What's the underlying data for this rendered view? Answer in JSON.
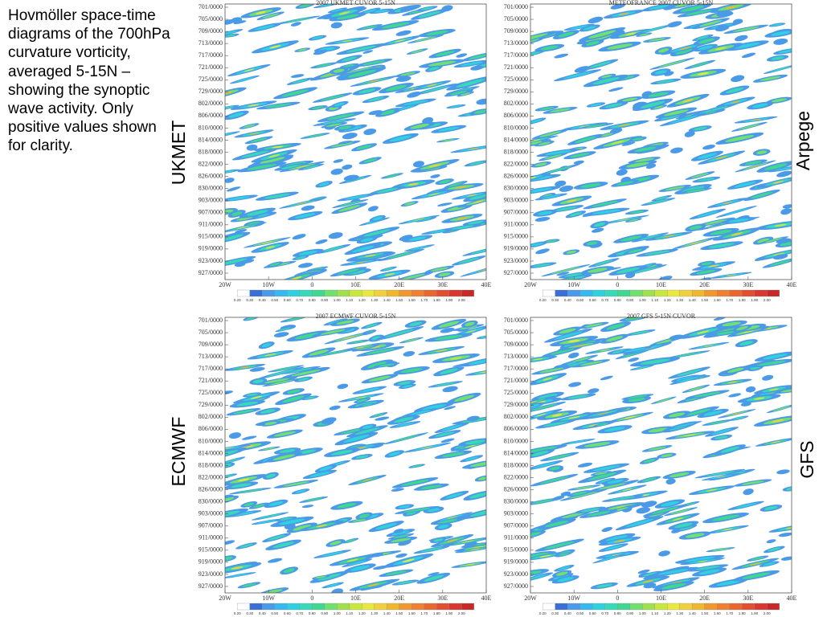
{
  "text": "Hovmöller space-time diagrams of the 700hPa curvature vorticity, averaged 5-15N – showing the synoptic wave activity. Only positive values shown for clarity.",
  "chart_data": [
    {
      "type": "contour",
      "title": "2007 UKMET CUVOR 5-15N",
      "label": "UKMET",
      "xlim": [
        -20,
        40
      ],
      "xticks": [
        {
          "value": -20,
          "label": "20W"
        },
        {
          "value": -10,
          "label": "10W"
        },
        0,
        {
          "value": 10,
          "label": "10E"
        },
        {
          "value": 20,
          "label": "20E"
        },
        {
          "value": 30,
          "label": "30E"
        },
        {
          "value": 40,
          "label": "40E"
        }
      ],
      "categories": [
        "701/0000",
        "705/0000",
        "709/0000",
        "713/0000",
        "717/0000",
        "721/0000",
        "725/0000",
        "729/0000",
        "802/0000",
        "806/0000",
        "810/0000",
        "814/0000",
        "818/0000",
        "822/0000",
        "826/0000",
        "830/0000",
        "903/0000",
        "907/0000",
        "911/0000",
        "915/0000",
        "919/0000",
        "923/0000",
        "927/0000"
      ],
      "levels": [
        {
          "value": 0.2,
          "label": "0.20"
        },
        {
          "value": 0.3,
          "label": "0.30"
        },
        {
          "value": 0.4,
          "label": "0.40"
        },
        {
          "value": 0.5,
          "label": "0.50"
        },
        {
          "value": 0.6,
          "label": "0.60"
        },
        {
          "value": 0.7,
          "label": "0.70"
        },
        {
          "value": 0.8,
          "label": "0.80"
        },
        {
          "value": 0.9,
          "label": "0.90"
        },
        {
          "value": 1,
          "label": "1.00"
        },
        {
          "value": 1.1,
          "label": "1.10"
        },
        {
          "value": 1.2,
          "label": "1.20"
        },
        {
          "value": 1.3,
          "label": "1.30"
        },
        {
          "value": 1.4,
          "label": "1.40"
        },
        {
          "value": 1.5,
          "label": "1.50"
        },
        {
          "value": 1.6,
          "label": "1.60"
        },
        {
          "value": 1.7,
          "label": "1.70"
        },
        {
          "value": 1.8,
          "label": "1.80"
        },
        {
          "value": 1.9,
          "label": "1.90"
        },
        {
          "value": 2,
          "label": "2.00"
        }
      ],
      "colors": [
        "#ffffff",
        "#3a6fd8",
        "#4a9ae8",
        "#38b8f0",
        "#30d0e0",
        "#38d8b8",
        "#40d890",
        "#70e070",
        "#a0e050",
        "#c8e840",
        "#e8e840",
        "#f0d040",
        "#f0b830",
        "#f09830",
        "#f08030",
        "#e86830",
        "#e05030",
        "#d83830",
        "#c82828"
      ]
    },
    {
      "type": "contour",
      "title": "METEOFRANCE 2007 CUVOR 5-15N",
      "label": "Arpege",
      "xlim": [
        -20,
        40
      ],
      "xticks": [
        {
          "value": -20,
          "label": "20W"
        },
        {
          "value": -10,
          "label": "10W"
        },
        0,
        {
          "value": 10,
          "label": "10E"
        },
        {
          "value": 20,
          "label": "20E"
        },
        {
          "value": 30,
          "label": "30E"
        },
        {
          "value": 40,
          "label": "40E"
        }
      ],
      "categories": [
        "701/0000",
        "705/0000",
        "709/0000",
        "713/0000",
        "717/0000",
        "721/0000",
        "725/0000",
        "729/0000",
        "802/0000",
        "806/0000",
        "810/0000",
        "814/0000",
        "818/0000",
        "822/0000",
        "826/0000",
        "830/0000",
        "903/0000",
        "907/0000",
        "911/0000",
        "915/0000",
        "919/0000",
        "923/0000",
        "927/0000"
      ],
      "levels": [
        {
          "value": 0.2,
          "label": "0.20"
        },
        {
          "value": 0.3,
          "label": "0.30"
        },
        {
          "value": 0.4,
          "label": "0.40"
        },
        {
          "value": 0.5,
          "label": "0.50"
        },
        {
          "value": 0.6,
          "label": "0.60"
        },
        {
          "value": 0.7,
          "label": "0.70"
        },
        {
          "value": 0.8,
          "label": "0.80"
        },
        {
          "value": 0.9,
          "label": "0.90"
        },
        {
          "value": 1,
          "label": "1.00"
        },
        {
          "value": 1.1,
          "label": "1.10"
        },
        {
          "value": 1.2,
          "label": "1.20"
        },
        {
          "value": 1.3,
          "label": "1.30"
        },
        {
          "value": 1.4,
          "label": "1.40"
        },
        {
          "value": 1.5,
          "label": "1.50"
        },
        {
          "value": 1.6,
          "label": "1.60"
        },
        {
          "value": 1.7,
          "label": "1.70"
        },
        {
          "value": 1.8,
          "label": "1.80"
        },
        {
          "value": 1.9,
          "label": "1.90"
        },
        {
          "value": 2,
          "label": "2.00"
        }
      ],
      "colors": [
        "#ffffff",
        "#3a6fd8",
        "#4a9ae8",
        "#38b8f0",
        "#30d0e0",
        "#38d8b8",
        "#40d890",
        "#70e070",
        "#a0e050",
        "#c8e840",
        "#e8e840",
        "#f0d040",
        "#f0b830",
        "#f09830",
        "#f08030",
        "#e86830",
        "#e05030",
        "#d83830",
        "#c82828"
      ]
    },
    {
      "type": "contour",
      "title": "2007 ECMWF CUVOR 5-15N",
      "label": "ECMWF",
      "xlim": [
        -20,
        40
      ],
      "xticks": [
        {
          "value": -20,
          "label": "20W"
        },
        {
          "value": -10,
          "label": "10W"
        },
        0,
        {
          "value": 10,
          "label": "10E"
        },
        {
          "value": 20,
          "label": "20E"
        },
        {
          "value": 30,
          "label": "30E"
        },
        {
          "value": 40,
          "label": "40E"
        }
      ],
      "categories": [
        "701/0000",
        "705/0000",
        "709/0000",
        "713/0000",
        "717/0000",
        "721/0000",
        "725/0000",
        "729/0000",
        "802/0000",
        "806/0000",
        "810/0000",
        "814/0000",
        "818/0000",
        "822/0000",
        "826/0000",
        "830/0000",
        "903/0000",
        "907/0000",
        "911/0000",
        "915/0000",
        "919/0000",
        "923/0000",
        "927/0000"
      ],
      "levels": [
        {
          "value": 0.2,
          "label": "0.20"
        },
        {
          "value": 0.3,
          "label": "0.30"
        },
        {
          "value": 0.4,
          "label": "0.40"
        },
        {
          "value": 0.5,
          "label": "0.50"
        },
        {
          "value": 0.6,
          "label": "0.60"
        },
        {
          "value": 0.7,
          "label": "0.70"
        },
        {
          "value": 0.8,
          "label": "0.80"
        },
        {
          "value": 0.9,
          "label": "0.90"
        },
        {
          "value": 1,
          "label": "1.00"
        },
        {
          "value": 1.1,
          "label": "1.10"
        },
        {
          "value": 1.2,
          "label": "1.20"
        },
        {
          "value": 1.3,
          "label": "1.30"
        },
        {
          "value": 1.4,
          "label": "1.40"
        },
        {
          "value": 1.5,
          "label": "1.50"
        },
        {
          "value": 1.6,
          "label": "1.60"
        },
        {
          "value": 1.7,
          "label": "1.70"
        },
        {
          "value": 1.8,
          "label": "1.80"
        },
        {
          "value": 1.9,
          "label": "1.90"
        },
        {
          "value": 2,
          "label": "2.00"
        }
      ],
      "colors": [
        "#ffffff",
        "#3a6fd8",
        "#4a9ae8",
        "#38b8f0",
        "#30d0e0",
        "#38d8b8",
        "#40d890",
        "#70e070",
        "#a0e050",
        "#c8e840",
        "#e8e840",
        "#f0d040",
        "#f0b830",
        "#f09830",
        "#f08030",
        "#e86830",
        "#e05030",
        "#d83830",
        "#c82828"
      ]
    },
    {
      "type": "contour",
      "title": "2007 GFS 5-15N CUVOR",
      "label": "GFS",
      "xlim": [
        -20,
        40
      ],
      "xticks": [
        {
          "value": -20,
          "label": "20W"
        },
        {
          "value": -10,
          "label": "10W"
        },
        0,
        {
          "value": 10,
          "label": "10E"
        },
        {
          "value": 20,
          "label": "20E"
        },
        {
          "value": 30,
          "label": "30E"
        },
        {
          "value": 40,
          "label": "40E"
        }
      ],
      "categories": [
        "701/0000",
        "705/0000",
        "709/0000",
        "713/0000",
        "717/0000",
        "721/0000",
        "725/0000",
        "729/0000",
        "802/0000",
        "806/0000",
        "810/0000",
        "814/0000",
        "818/0000",
        "822/0000",
        "826/0000",
        "830/0000",
        "903/0000",
        "907/0000",
        "911/0000",
        "915/0000",
        "919/0000",
        "923/0000",
        "927/0000"
      ],
      "levels": [
        {
          "value": 0.2,
          "label": "0.20"
        },
        {
          "value": 0.3,
          "label": "0.30"
        },
        {
          "value": 0.4,
          "label": "0.40"
        },
        {
          "value": 0.5,
          "label": "0.50"
        },
        {
          "value": 0.6,
          "label": "0.60"
        },
        {
          "value": 0.7,
          "label": "0.70"
        },
        {
          "value": 0.8,
          "label": "0.80"
        },
        {
          "value": 0.9,
          "label": "0.90"
        },
        {
          "value": 1,
          "label": "1.00"
        },
        {
          "value": 1.1,
          "label": "1.10"
        },
        {
          "value": 1.2,
          "label": "1.20"
        },
        {
          "value": 1.3,
          "label": "1.30"
        },
        {
          "value": 1.4,
          "label": "1.40"
        },
        {
          "value": 1.5,
          "label": "1.50"
        },
        {
          "value": 1.6,
          "label": "1.60"
        },
        {
          "value": 1.7,
          "label": "1.70"
        },
        {
          "value": 1.8,
          "label": "1.80"
        },
        {
          "value": 1.9,
          "label": "1.90"
        },
        {
          "value": 2,
          "label": "2.00"
        }
      ],
      "colors": [
        "#ffffff",
        "#3a6fd8",
        "#4a9ae8",
        "#38b8f0",
        "#30d0e0",
        "#38d8b8",
        "#40d890",
        "#70e070",
        "#a0e050",
        "#c8e840",
        "#e8e840",
        "#f0d040",
        "#f0b830",
        "#f09830",
        "#f08030",
        "#e86830",
        "#e05030",
        "#d83830",
        "#c82828"
      ]
    }
  ]
}
